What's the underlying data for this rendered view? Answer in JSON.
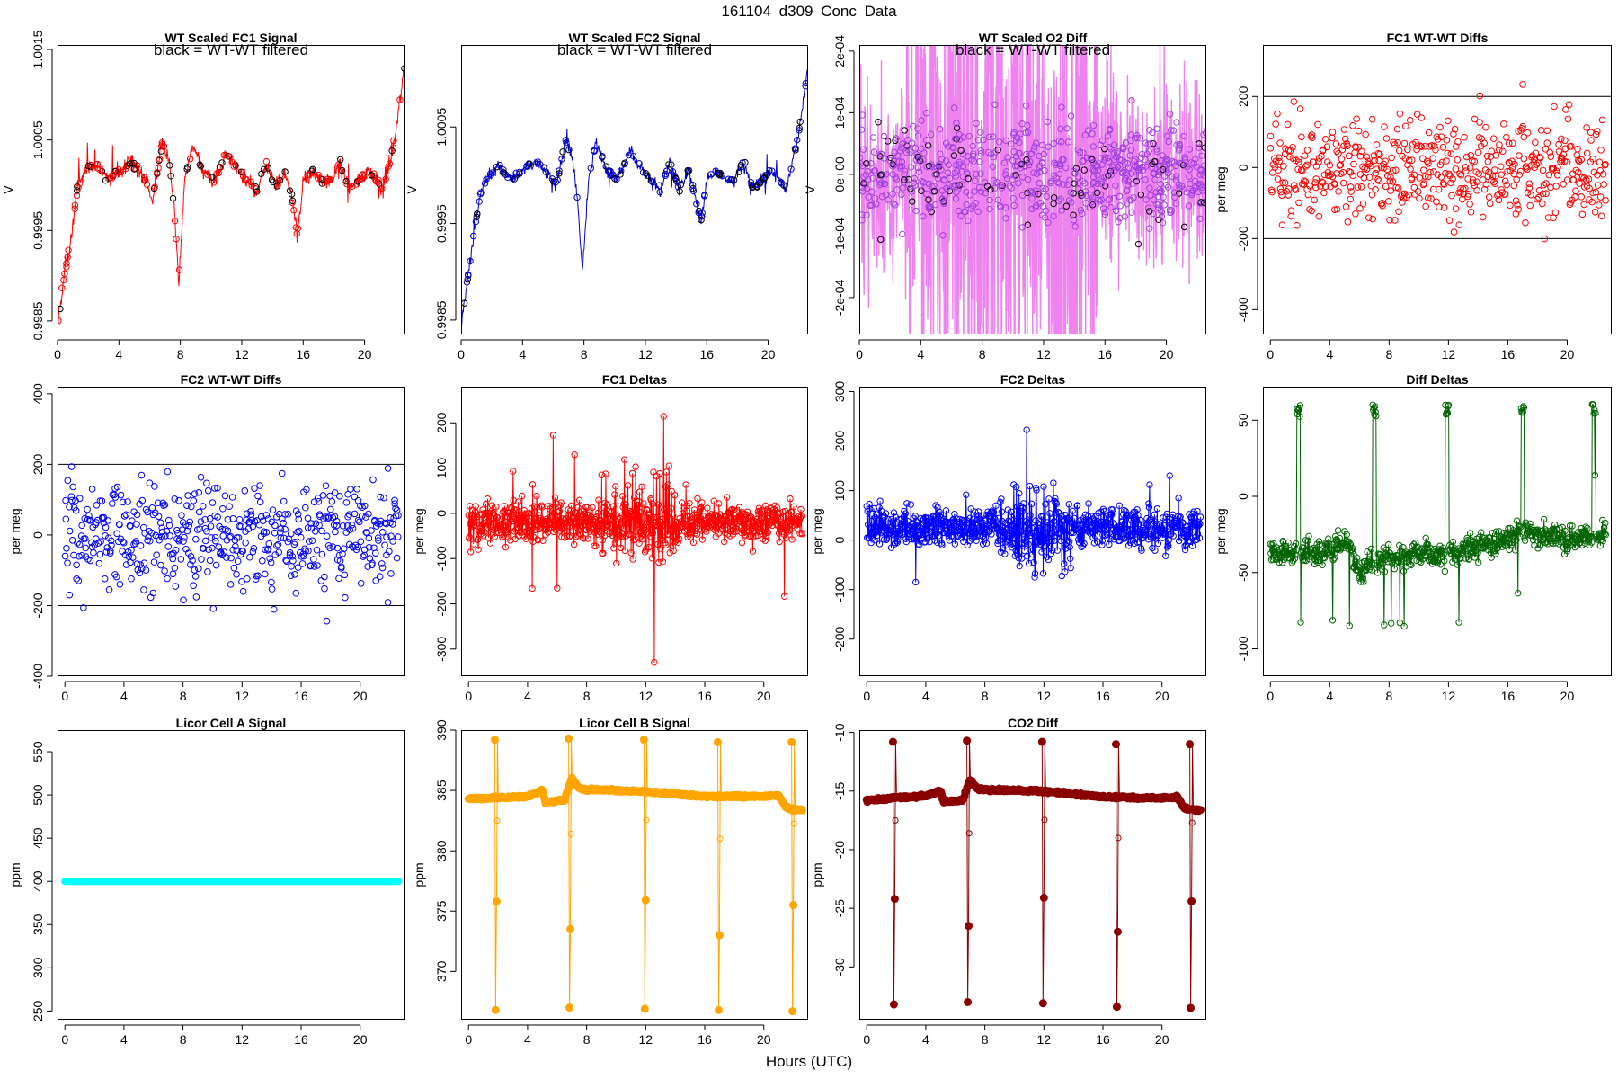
{
  "figure": {
    "title": "161104   d309   Conc Data",
    "xlabel": "Hours (UTC)"
  },
  "chart_data": [
    {
      "id": "fc1-signal",
      "type": "line",
      "title": "WT Scaled FC1 Signal",
      "annotation": "black = WT-WT filtered",
      "ylabel": "V",
      "xlim": [
        0,
        22.6
      ],
      "ylim": [
        0.99835,
        1.00155
      ],
      "xticks": [
        0,
        4,
        8,
        12,
        16,
        20
      ],
      "yticks": [
        0.9985,
        0.9995,
        1.0005,
        1.0015
      ],
      "ytick_labels": [
        "0.9985",
        "0.9995",
        "1.0005",
        "1.0015"
      ],
      "colors": {
        "line": "#ff0000",
        "filtered": "#000000"
      },
      "series_shape": {
        "x": [
          0,
          0.3,
          0.8,
          1.3,
          1.8,
          2.5,
          3.2,
          4.0,
          4.8,
          5.5,
          6.2,
          6.8,
          7.3,
          7.6,
          7.9,
          8.3,
          8.8,
          9.5,
          10.2,
          11.0,
          11.8,
          12.4,
          13.0,
          13.6,
          14.2,
          14.8,
          15.3,
          15.6,
          16.0,
          16.6,
          17.2,
          17.8,
          18.4,
          19.0,
          19.6,
          20.2,
          20.8,
          21.2,
          21.6,
          22.0,
          22.4,
          22.6
        ],
        "y": [
          0.99845,
          0.99885,
          0.99935,
          0.99995,
          1.00015,
          1.00025,
          1.00005,
          1.00015,
          1.00025,
          1.00015,
          0.99985,
          1.00045,
          1.00025,
          0.99975,
          0.99895,
          1.00005,
          1.00045,
          1.00015,
          1.00005,
          1.00035,
          1.00015,
          1.00005,
          0.99995,
          1.00025,
          0.99995,
          1.00015,
          0.99985,
          0.99945,
          1.00005,
          1.00015,
          1.00005,
          1.00005,
          1.00025,
          0.99995,
          1.00005,
          1.00015,
          1.00005,
          0.99995,
          1.00025,
          1.00055,
          1.00105,
          1.00135
        ]
      },
      "noise": 0.00012
    },
    {
      "id": "fc2-signal",
      "type": "line",
      "title": "WT Scaled FC2 Signal",
      "annotation": "black = WT-WT filtered",
      "ylabel": "V",
      "xlim": [
        0,
        22.6
      ],
      "ylim": [
        0.99835,
        1.00135
      ],
      "xticks": [
        0,
        4,
        8,
        12,
        16,
        20
      ],
      "yticks": [
        0.9985,
        0.9995,
        1.0005
      ],
      "ytick_labels": [
        "0.9985",
        "0.9995",
        "1.0005"
      ],
      "colors": {
        "line": "#0000cc",
        "filtered": "#000000"
      },
      "series_shape": {
        "x": [
          0,
          0.3,
          0.8,
          1.3,
          1.8,
          2.5,
          3.2,
          4.0,
          4.8,
          5.5,
          6.2,
          6.8,
          7.3,
          7.6,
          7.9,
          8.3,
          8.8,
          9.5,
          10.2,
          11.0,
          11.8,
          12.4,
          13.0,
          13.6,
          14.2,
          14.8,
          15.3,
          15.6,
          16.0,
          16.6,
          17.2,
          17.8,
          18.4,
          19.0,
          19.6,
          20.2,
          20.8,
          21.2,
          21.6,
          22.0,
          22.4,
          22.6
        ],
        "y": [
          0.9984,
          0.9988,
          0.99935,
          0.99985,
          1.0,
          1.0001,
          0.99995,
          1.00005,
          1.00015,
          1.00005,
          0.9999,
          1.00035,
          1.00015,
          0.9997,
          0.999,
          0.99995,
          1.00035,
          1.00005,
          0.99995,
          1.00025,
          1.00005,
          0.99995,
          0.99985,
          1.00015,
          0.99985,
          1.00005,
          0.99975,
          0.9995,
          0.99995,
          1.00005,
          0.99995,
          0.99995,
          1.00015,
          0.99985,
          0.99995,
          1.00005,
          0.99995,
          0.99985,
          1.00015,
          1.00045,
          1.0009,
          1.00115
        ]
      },
      "noise": 8e-05
    },
    {
      "id": "o2-diff",
      "type": "line",
      "title": "WT Scaled O2 Diff",
      "annotation": "black = WT-WT filtered",
      "ylabel": "V",
      "xlim": [
        0,
        22.6
      ],
      "ylim": [
        -0.00026,
        0.00021
      ],
      "xticks": [
        0,
        4,
        8,
        12,
        16,
        20
      ],
      "yticks": [
        -0.0002,
        -0.0001,
        0,
        0.0001,
        0.0002
      ],
      "ytick_labels": [
        "-2e-04",
        "-1e-04",
        "0e+00",
        "1e-04",
        "2e-04"
      ],
      "colors": {
        "line": "#ee82ee",
        "points": "#9f40e0",
        "filtered": "#000000"
      },
      "noise": 6e-05
    },
    {
      "id": "fc1-wtwt-diffs",
      "type": "scatter",
      "title": "FC1 WT-WT Diffs",
      "ylabel": "per meg",
      "xlim": [
        -0.5,
        23.0
      ],
      "ylim": [
        -470,
        345
      ],
      "xticks": [
        0,
        4,
        8,
        12,
        16,
        20
      ],
      "yticks": [
        -400,
        -200,
        0,
        200
      ],
      "ytick_labels": [
        "-400",
        "-200",
        "0",
        "200"
      ],
      "hlines": [
        200,
        -200
      ],
      "colors": {
        "points": "#ff0000"
      },
      "n_points": 520,
      "spread": 110
    },
    {
      "id": "fc2-wtwt-diffs",
      "type": "scatter",
      "title": "FC2 WT-WT Diffs",
      "ylabel": "per meg",
      "xlim": [
        -0.5,
        23.0
      ],
      "ylim": [
        -400,
        420
      ],
      "xticks": [
        0,
        4,
        8,
        12,
        16,
        20
      ],
      "yticks": [
        -400,
        -200,
        0,
        200,
        400
      ],
      "ytick_labels": [
        "-400",
        "-200",
        "0",
        "200",
        "400"
      ],
      "hlines": [
        200,
        -200
      ],
      "colors": {
        "points": "#0000ff"
      },
      "n_points": 520,
      "spread": 110
    },
    {
      "id": "fc1-deltas",
      "type": "line",
      "title": "FC1 Deltas",
      "ylabel": "per meg",
      "xlim": [
        -0.5,
        23.0
      ],
      "ylim": [
        -360,
        280
      ],
      "xticks": [
        0,
        4,
        8,
        12,
        16,
        20
      ],
      "yticks": [
        -300,
        -200,
        -100,
        0,
        100,
        200
      ],
      "ytick_labels": [
        "-300",
        "-200",
        "-100",
        "0",
        "100",
        "200"
      ],
      "colors": {
        "line": "#ff0000"
      },
      "baseline": -20,
      "spread": 45
    },
    {
      "id": "fc2-deltas",
      "type": "line",
      "title": "FC2 Deltas",
      "ylabel": "per meg",
      "xlim": [
        -0.5,
        23.0
      ],
      "ylim": [
        -275,
        310
      ],
      "xticks": [
        0,
        4,
        8,
        12,
        16,
        20
      ],
      "yticks": [
        -200,
        -100,
        0,
        100,
        200,
        300
      ],
      "ytick_labels": [
        "-200",
        "-100",
        "0",
        "100",
        "200",
        "300"
      ],
      "colors": {
        "line": "#0000ff"
      },
      "baseline": 25,
      "spread": 40
    },
    {
      "id": "diff-deltas",
      "type": "line",
      "title": "Diff Deltas",
      "ylabel": "per meg",
      "xlim": [
        -0.5,
        23.0
      ],
      "ylim": [
        -118,
        72
      ],
      "xticks": [
        0,
        4,
        8,
        12,
        16,
        20
      ],
      "yticks": [
        -100,
        -50,
        0,
        50
      ],
      "ytick_labels": [
        "-100",
        "-50",
        "0",
        "50"
      ],
      "colors": {
        "line": "#006400"
      },
      "baseline_shape": {
        "x": [
          0,
          4,
          5,
          6,
          8,
          12,
          16,
          17,
          20,
          22.6
        ],
        "y": [
          -38,
          -36,
          -30,
          -48,
          -40,
          -38,
          -28,
          -22,
          -28,
          -25
        ]
      },
      "spikes": [
        1.9,
        7.0,
        11.9,
        17.0,
        21.8
      ],
      "spike_value": 62,
      "spread": 6
    },
    {
      "id": "licor-a",
      "type": "line",
      "title": "Licor Cell A Signal",
      "ylabel": "ppm",
      "xlim": [
        -0.5,
        23.0
      ],
      "ylim": [
        240,
        575
      ],
      "xticks": [
        0,
        4,
        8,
        12,
        16,
        20
      ],
      "yticks": [
        250,
        300,
        350,
        400,
        450,
        500,
        550
      ],
      "ytick_labels": [
        "250",
        "300",
        "350",
        "400",
        "450",
        "500",
        "550"
      ],
      "colors": {
        "line": "#00ffff"
      },
      "constant_value": 400
    },
    {
      "id": "licor-b",
      "type": "line",
      "title": "Licor Cell B Signal",
      "ylabel": "ppm",
      "xlim": [
        -0.5,
        23.0
      ],
      "ylim": [
        366,
        390
      ],
      "xticks": [
        0,
        4,
        8,
        12,
        16,
        20
      ],
      "yticks": [
        370,
        375,
        380,
        385,
        390
      ],
      "ytick_labels": [
        "370",
        "375",
        "380",
        "385",
        "390"
      ],
      "colors": {
        "line": "#ffa500"
      },
      "baseline_shape": {
        "x": [
          0,
          2,
          4,
          5,
          5.2,
          6.5,
          7.0,
          7.5,
          8,
          12,
          16,
          20,
          21,
          21.5,
          22,
          22.6
        ],
        "y": [
          384.3,
          384.4,
          384.5,
          385.0,
          384.0,
          384.2,
          386.0,
          385.2,
          385.1,
          384.9,
          384.5,
          384.5,
          384.6,
          383.6,
          383.4,
          383.4
        ]
      },
      "spikes": [
        {
          "x": 1.9,
          "high": 389.2,
          "low": 366.8,
          "mid": 375.8
        },
        {
          "x": 6.9,
          "high": 389.3,
          "low": 367.0,
          "mid": 373.5
        },
        {
          "x": 12.0,
          "high": 389.2,
          "low": 366.9,
          "mid": 375.9
        },
        {
          "x": 17.0,
          "high": 389.0,
          "low": 366.8,
          "mid": 373.0
        },
        {
          "x": 22.0,
          "high": 389.0,
          "low": 366.7,
          "mid": 375.5
        }
      ]
    },
    {
      "id": "co2-diff",
      "type": "line",
      "title": "CO2 Diff",
      "ylabel": "ppm",
      "xlim": [
        -0.5,
        23.0
      ],
      "ylim": [
        -34.5,
        -9.8
      ],
      "xticks": [
        0,
        4,
        8,
        12,
        16,
        20
      ],
      "yticks": [
        -30,
        -25,
        -20,
        -15,
        -10
      ],
      "ytick_labels": [
        "-30",
        "-25",
        "-20",
        "-15",
        "-10"
      ],
      "colors": {
        "line": "#8b0000"
      },
      "baseline_shape": {
        "x": [
          0,
          2,
          4,
          5,
          5.2,
          6.5,
          7.0,
          7.5,
          8,
          12,
          16,
          20,
          21,
          21.5,
          22,
          22.6
        ],
        "y": [
          -15.8,
          -15.6,
          -15.4,
          -15.0,
          -15.9,
          -15.8,
          -14.0,
          -14.8,
          -14.9,
          -15.0,
          -15.5,
          -15.6,
          -15.5,
          -16.4,
          -16.6,
          -16.6
        ]
      },
      "spikes": [
        {
          "x": 1.9,
          "high": -10.8,
          "low": -33.2,
          "mid": -24.2
        },
        {
          "x": 6.9,
          "high": -10.7,
          "low": -33.0,
          "mid": -26.5
        },
        {
          "x": 12.0,
          "high": -10.8,
          "low": -33.1,
          "mid": -24.1
        },
        {
          "x": 17.0,
          "high": -11.0,
          "low": -33.4,
          "mid": -27.0
        },
        {
          "x": 22.0,
          "high": -11.0,
          "low": -33.5,
          "mid": -24.4
        }
      ]
    }
  ]
}
